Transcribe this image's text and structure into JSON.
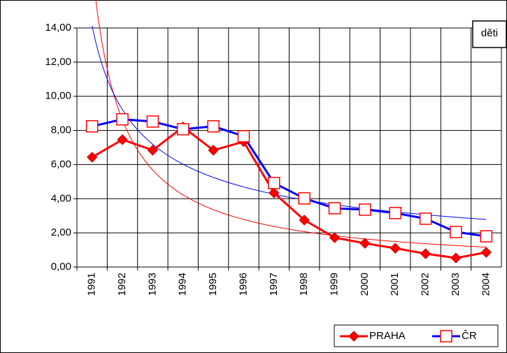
{
  "chart_data": {
    "type": "line",
    "annotation": "děti",
    "categories": [
      "1991",
      "1992",
      "1993",
      "1994",
      "1995",
      "1996",
      "1997",
      "1998",
      "1999",
      "2000",
      "2001",
      "2002",
      "2003",
      "2004"
    ],
    "series": [
      {
        "name": "PRAHA",
        "color": "#ff0000",
        "marker": "diamond",
        "values": [
          6.43,
          7.46,
          6.84,
          8.2,
          6.84,
          7.34,
          4.34,
          2.75,
          1.72,
          1.39,
          1.1,
          0.78,
          0.53,
          0.86
        ]
      },
      {
        "name": "ČR",
        "color": "#0000ff",
        "marker": "square",
        "values": [
          8.24,
          8.65,
          8.52,
          8.07,
          8.24,
          7.66,
          4.92,
          4.02,
          3.44,
          3.36,
          3.16,
          2.83,
          2.05,
          1.8
        ]
      }
    ],
    "ylim": [
      0,
      14
    ],
    "yticks": [
      {
        "value": 0,
        "label": "0,00"
      },
      {
        "value": 2,
        "label": "2,00"
      },
      {
        "value": 4,
        "label": "4,00"
      },
      {
        "value": 6,
        "label": "6,00"
      },
      {
        "value": 8,
        "label": "8,00"
      },
      {
        "value": 10,
        "label": "10,00"
      },
      {
        "value": 12,
        "label": "12,00"
      },
      {
        "value": 14,
        "label": "14,00"
      }
    ],
    "grid": true,
    "legend": "bottom-right"
  }
}
